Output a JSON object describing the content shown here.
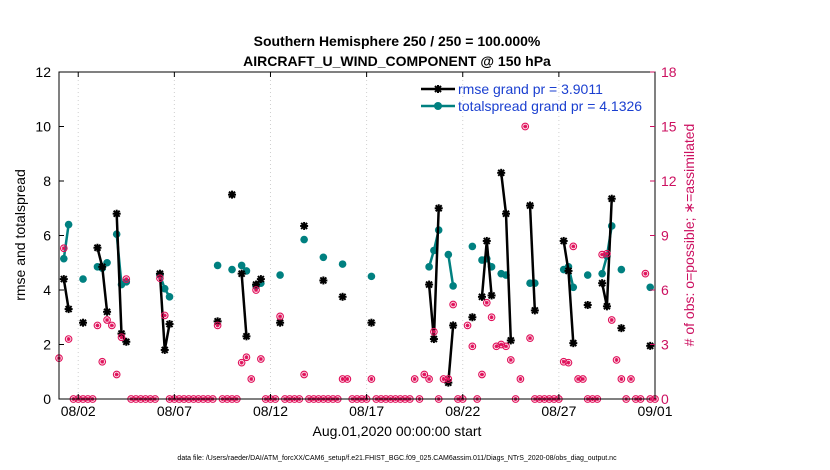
{
  "chart_data": {
    "type": "line",
    "title": "Southern Hemisphere 250 / 250 = 100.000%",
    "subtitle": "AIRCRAFT_U_WIND_COMPONENT @ 150 hPa",
    "xlabel": "Aug.01,2020 00:00:00 start",
    "ylabel_left": "rmse and totalspread",
    "ylabel_right": "# of obs: o=possible; ∗=assimilated",
    "footer": "data file: /Users/raeder/DAI/ATM_forcXX/CAM6_setup/f.e21.FHIST_BGC.f09_025.CAM6assim.011/Diags_NTrS_2020-08/obs_diag_output.nc",
    "xlim": [
      0.5,
      31.5
    ],
    "ylim_left": [
      0,
      12
    ],
    "ylim_right": [
      0,
      18
    ],
    "x_ticks": [
      {
        "x": 1.5,
        "label": "08/02"
      },
      {
        "x": 6.5,
        "label": "08/07"
      },
      {
        "x": 11.5,
        "label": "08/12"
      },
      {
        "x": 16.5,
        "label": "08/17"
      },
      {
        "x": 21.5,
        "label": "08/22"
      },
      {
        "x": 26.5,
        "label": "08/27"
      },
      {
        "x": 31.5,
        "label": "09/01"
      }
    ],
    "y_ticks_left": [
      "0",
      "2",
      "4",
      "6",
      "8",
      "10",
      "12"
    ],
    "y_ticks_right": [
      "0",
      "3",
      "6",
      "9",
      "12",
      "15",
      "18"
    ],
    "colors": {
      "rmse": "#000000",
      "spread": "#008080",
      "obs": "#e0105a",
      "right_axis": "#cc1060"
    },
    "legend": {
      "position": "top-right",
      "rmse_label": "rmse grand pr = 3.9011",
      "spread_label": "totalspread grand pr = 4.1326"
    },
    "rmse_segments": [
      [
        [
          0.75,
          4.4
        ],
        [
          1.0,
          3.3
        ]
      ],
      [
        [
          1.75,
          2.8
        ]
      ],
      [
        [
          2.5,
          5.55
        ],
        [
          2.75,
          4.85
        ],
        [
          3.0,
          3.2
        ]
      ],
      [
        [
          3.5,
          6.8
        ],
        [
          3.75,
          2.4
        ],
        [
          4.0,
          2.1
        ]
      ],
      [
        [
          5.75,
          4.6
        ],
        [
          6.0,
          1.8
        ],
        [
          6.25,
          2.75
        ]
      ],
      [
        [
          8.75,
          2.85
        ]
      ],
      [
        [
          9.5,
          7.5
        ]
      ],
      [
        [
          10.0,
          4.6
        ],
        [
          10.25,
          2.3
        ]
      ],
      [
        [
          10.75,
          4.2
        ],
        [
          11.0,
          4.4
        ]
      ],
      [
        [
          12.0,
          2.8
        ]
      ],
      [
        [
          13.25,
          6.35
        ]
      ],
      [
        [
          14.25,
          4.35
        ]
      ],
      [
        [
          15.25,
          3.75
        ]
      ],
      [
        [
          16.75,
          2.8
        ]
      ],
      [
        [
          19.75,
          4.2
        ],
        [
          20.0,
          2.2
        ],
        [
          20.25,
          7.0
        ]
      ],
      [
        [
          20.75,
          0.6
        ],
        [
          21.0,
          2.7
        ]
      ],
      [
        [
          22.0,
          3.0
        ]
      ],
      [
        [
          22.5,
          3.75
        ],
        [
          22.75,
          5.8
        ],
        [
          23.0,
          3.8
        ]
      ],
      [
        [
          23.5,
          8.3
        ],
        [
          23.75,
          6.8
        ],
        [
          24.0,
          2.15
        ]
      ],
      [
        [
          25.0,
          7.1
        ],
        [
          25.25,
          3.25
        ]
      ],
      [
        [
          26.75,
          5.8
        ],
        [
          27.0,
          4.7
        ],
        [
          27.25,
          2.05
        ]
      ],
      [
        [
          28.0,
          3.45
        ]
      ],
      [
        [
          28.75,
          4.25
        ],
        [
          29.0,
          3.4
        ],
        [
          29.25,
          7.35
        ]
      ],
      [
        [
          29.75,
          2.6
        ]
      ],
      [
        [
          31.25,
          1.95
        ]
      ]
    ],
    "spread_segments": [
      [
        [
          0.75,
          5.15
        ],
        [
          1.0,
          6.4
        ]
      ],
      [
        [
          1.75,
          4.4
        ]
      ],
      [
        [
          2.5,
          4.85
        ],
        [
          2.75,
          4.8
        ],
        [
          3.0,
          5.0
        ]
      ],
      [
        [
          3.5,
          6.05
        ],
        [
          3.75,
          4.2
        ],
        [
          4.0,
          4.3
        ]
      ],
      [
        [
          5.75,
          4.55
        ],
        [
          6.0,
          4.05
        ],
        [
          6.25,
          3.75
        ]
      ],
      [
        [
          8.75,
          4.9
        ]
      ],
      [
        [
          9.5,
          4.75
        ]
      ],
      [
        [
          10.0,
          4.9
        ],
        [
          10.25,
          4.7
        ]
      ],
      [
        [
          10.75,
          4.15
        ],
        [
          11.0,
          4.25
        ]
      ],
      [
        [
          12.0,
          4.55
        ]
      ],
      [
        [
          13.25,
          5.85
        ]
      ],
      [
        [
          14.25,
          5.2
        ]
      ],
      [
        [
          15.25,
          4.95
        ]
      ],
      [
        [
          16.75,
          4.5
        ]
      ],
      [
        [
          19.75,
          4.85
        ],
        [
          20.0,
          5.45
        ],
        [
          20.25,
          6.2
        ]
      ],
      [
        [
          20.75,
          5.3
        ],
        [
          21.0,
          4.15
        ]
      ],
      [
        [
          22.0,
          5.6
        ]
      ],
      [
        [
          22.5,
          5.1
        ],
        [
          22.75,
          5.15
        ],
        [
          23.0,
          4.85
        ]
      ],
      [
        [
          23.5,
          4.6
        ],
        [
          23.75,
          4.55
        ]
      ],
      [
        [
          25.0,
          4.25
        ],
        [
          25.25,
          4.25
        ]
      ],
      [
        [
          26.75,
          4.75
        ],
        [
          27.0,
          4.85
        ],
        [
          27.25,
          4.1
        ]
      ],
      [
        [
          28.0,
          4.55
        ]
      ],
      [
        [
          28.75,
          4.6
        ],
        [
          29.0,
          5.25
        ],
        [
          29.25,
          6.35
        ]
      ],
      [
        [
          29.75,
          4.75
        ]
      ],
      [
        [
          31.25,
          4.1
        ]
      ]
    ],
    "obs_counts": [
      [
        0.5,
        2.25
      ],
      [
        0.75,
        8.3
      ],
      [
        1.0,
        3.3
      ],
      [
        1.25,
        0
      ],
      [
        1.5,
        0
      ],
      [
        1.75,
        0
      ],
      [
        2.0,
        0
      ],
      [
        2.25,
        0
      ],
      [
        2.5,
        4.05
      ],
      [
        2.75,
        2.05
      ],
      [
        3.0,
        4.35
      ],
      [
        3.25,
        4.05
      ],
      [
        3.5,
        1.35
      ],
      [
        3.75,
        3.4
      ],
      [
        4.0,
        6.6
      ],
      [
        4.25,
        0
      ],
      [
        4.5,
        0
      ],
      [
        4.75,
        0
      ],
      [
        5.0,
        0
      ],
      [
        5.25,
        0
      ],
      [
        5.5,
        0
      ],
      [
        5.75,
        6.65
      ],
      [
        6.0,
        4.6
      ],
      [
        6.25,
        0
      ],
      [
        6.5,
        0
      ],
      [
        6.75,
        0
      ],
      [
        7.0,
        0
      ],
      [
        7.25,
        0
      ],
      [
        7.5,
        0
      ],
      [
        7.75,
        0
      ],
      [
        8.0,
        0
      ],
      [
        8.25,
        0
      ],
      [
        8.5,
        0
      ],
      [
        8.75,
        4.05
      ],
      [
        9.0,
        0
      ],
      [
        9.25,
        0
      ],
      [
        9.5,
        0
      ],
      [
        9.75,
        0
      ],
      [
        10.0,
        2.0
      ],
      [
        10.25,
        2.3
      ],
      [
        10.5,
        1.1
      ],
      [
        10.75,
        6.0
      ],
      [
        11.0,
        2.2
      ],
      [
        11.25,
        0
      ],
      [
        11.5,
        0
      ],
      [
        11.75,
        0
      ],
      [
        12.0,
        4.55
      ],
      [
        12.25,
        0
      ],
      [
        12.5,
        0
      ],
      [
        12.75,
        0
      ],
      [
        13.0,
        0
      ],
      [
        13.25,
        1.35
      ],
      [
        13.5,
        0
      ],
      [
        13.75,
        0
      ],
      [
        14.0,
        0
      ],
      [
        14.25,
        0
      ],
      [
        14.5,
        0
      ],
      [
        14.75,
        0
      ],
      [
        15.0,
        0
      ],
      [
        15.25,
        1.1
      ],
      [
        15.5,
        1.1
      ],
      [
        15.75,
        0
      ],
      [
        16.0,
        0
      ],
      [
        16.25,
        0
      ],
      [
        16.5,
        0
      ],
      [
        16.75,
        1.1
      ],
      [
        17.0,
        0
      ],
      [
        17.25,
        0
      ],
      [
        17.5,
        0
      ],
      [
        17.75,
        0
      ],
      [
        18.0,
        0
      ],
      [
        18.25,
        0
      ],
      [
        18.5,
        0
      ],
      [
        18.75,
        0
      ],
      [
        19.0,
        1.1
      ],
      [
        19.25,
        0
      ],
      [
        19.5,
        1.35
      ],
      [
        19.75,
        1.1
      ],
      [
        20.0,
        3.7
      ],
      [
        20.25,
        0
      ],
      [
        20.5,
        1.1
      ],
      [
        20.75,
        1.1
      ],
      [
        21.0,
        5.2
      ],
      [
        21.25,
        0
      ],
      [
        21.5,
        0
      ],
      [
        21.75,
        4.05
      ],
      [
        22.0,
        2.9
      ],
      [
        22.25,
        0
      ],
      [
        22.5,
        1.35
      ],
      [
        22.75,
        5.3
      ],
      [
        23.0,
        4.5
      ],
      [
        23.25,
        2.9
      ],
      [
        23.5,
        3.0
      ],
      [
        23.75,
        2.9
      ],
      [
        24.0,
        2.15
      ],
      [
        24.25,
        0
      ],
      [
        24.5,
        1.1
      ],
      [
        24.75,
        15.0
      ],
      [
        25.0,
        3.35
      ],
      [
        25.25,
        0
      ],
      [
        25.5,
        0
      ],
      [
        25.75,
        0
      ],
      [
        26.0,
        0
      ],
      [
        26.25,
        0
      ],
      [
        26.5,
        0
      ],
      [
        26.75,
        2.05
      ],
      [
        27.0,
        2.0
      ],
      [
        27.25,
        8.4
      ],
      [
        27.5,
        1.1
      ],
      [
        27.75,
        1.1
      ],
      [
        28.0,
        0
      ],
      [
        28.25,
        0
      ],
      [
        28.5,
        0
      ],
      [
        28.75,
        7.95
      ],
      [
        29.0,
        8.0
      ],
      [
        29.25,
        4.35
      ],
      [
        29.5,
        2.15
      ],
      [
        29.75,
        1.1
      ],
      [
        30.0,
        0
      ],
      [
        30.25,
        1.1
      ],
      [
        30.5,
        0
      ],
      [
        30.75,
        0
      ],
      [
        31.0,
        6.9
      ],
      [
        31.25,
        0
      ],
      [
        31.5,
        0
      ]
    ]
  }
}
